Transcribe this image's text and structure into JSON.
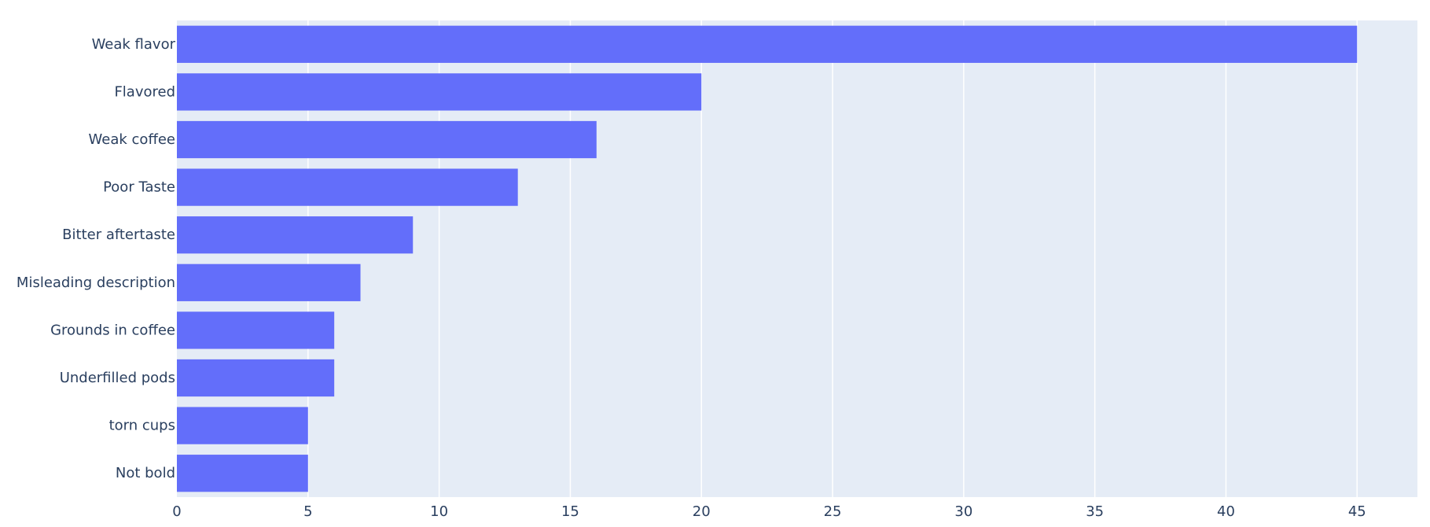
{
  "chart_data": {
    "type": "bar",
    "orientation": "horizontal",
    "categories": [
      "Weak flavor",
      "Flavored",
      "Weak coffee",
      "Poor Taste",
      "Bitter aftertaste",
      "Misleading description",
      "Grounds in coffee",
      "Underfilled pods",
      "torn cups",
      "Not bold"
    ],
    "values": [
      45,
      20,
      16,
      13,
      9,
      7,
      6,
      6,
      5,
      5
    ],
    "xlim": [
      0,
      47.3
    ],
    "x_ticks": [
      0,
      5,
      10,
      15,
      20,
      25,
      30,
      35,
      40,
      45
    ],
    "x_tick_labels": [
      "0",
      "5",
      "10",
      "15",
      "20",
      "25",
      "30",
      "35",
      "40",
      "45"
    ],
    "grid": true,
    "title": "",
    "xlabel": "",
    "ylabel": "",
    "colors": {
      "bar": "#636efa",
      "plot_background": "#e5ecf6",
      "grid": "#ffffff",
      "text": "#2a3f5f"
    }
  }
}
